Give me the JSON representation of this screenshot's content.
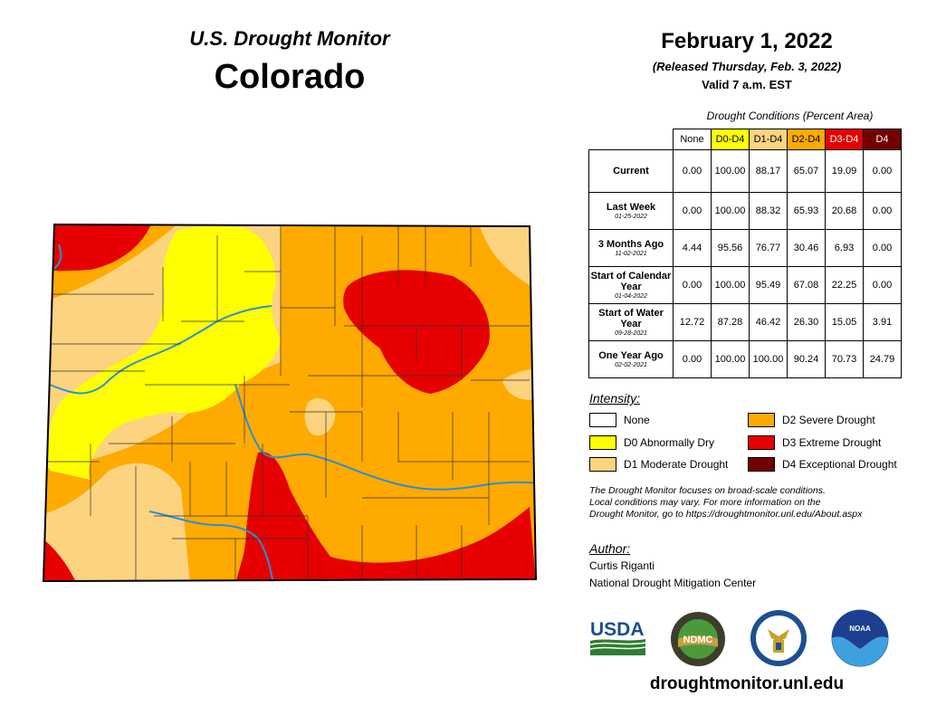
{
  "header": {
    "subtitle": "U.S. Drought Monitor",
    "state": "Colorado",
    "date": "February 1, 2022",
    "released": "(Released Thursday, Feb. 3, 2022)",
    "valid": "Valid 7 a.m. EST"
  },
  "table": {
    "caption": "Drought Conditions (Percent Area)",
    "columns": [
      "None",
      "D0-D4",
      "D1-D4",
      "D2-D4",
      "D3-D4",
      "D4"
    ],
    "column_colors": [
      "#ffffff",
      "#ffff00",
      "#fcd37f",
      "#ffaa00",
      "#e60000",
      "#730000"
    ],
    "rows": [
      {
        "label": "Current",
        "date": "",
        "values": [
          "0.00",
          "100.00",
          "88.17",
          "65.07",
          "19.09",
          "0.00"
        ]
      },
      {
        "label": "Last Week",
        "date": "01-25-2022",
        "values": [
          "0.00",
          "100.00",
          "88.32",
          "65.93",
          "20.68",
          "0.00"
        ]
      },
      {
        "label": "3 Months Ago",
        "date": "11-02-2021",
        "values": [
          "4.44",
          "95.56",
          "76.77",
          "30.46",
          "6.93",
          "0.00"
        ]
      },
      {
        "label": "Start of Calendar Year",
        "date": "01-04-2022",
        "values": [
          "0.00",
          "100.00",
          "95.49",
          "67.08",
          "22.25",
          "0.00"
        ]
      },
      {
        "label": "Start of Water Year",
        "date": "09-28-2021",
        "values": [
          "12.72",
          "87.28",
          "46.42",
          "26.30",
          "15.05",
          "3.91"
        ]
      },
      {
        "label": "One Year Ago",
        "date": "02-02-2021",
        "values": [
          "0.00",
          "100.00",
          "100.00",
          "90.24",
          "70.73",
          "24.79"
        ]
      }
    ]
  },
  "legend": {
    "title": "Intensity:",
    "items": [
      {
        "label": "None",
        "color": "#ffffff"
      },
      {
        "label": "D0 Abnormally Dry",
        "color": "#ffff00"
      },
      {
        "label": "D1 Moderate Drought",
        "color": "#fcd37f"
      },
      {
        "label": "D2 Severe Drought",
        "color": "#ffaa00"
      },
      {
        "label": "D3 Extreme Drought",
        "color": "#e60000"
      },
      {
        "label": "D4 Exceptional Drought",
        "color": "#730000"
      }
    ]
  },
  "disclaimer": {
    "line1": "The Drought Monitor focuses on broad-scale conditions.",
    "line2": "Local conditions may vary. For more information on the",
    "line3": "Drought Monitor, go to https://droughtmonitor.unl.edu/About.aspx"
  },
  "author": {
    "title": "Author:",
    "name": "Curtis Riganti",
    "org": "National Drought Mitigation Center"
  },
  "logos": {
    "usda": "USDA",
    "ndmc": "NDMC",
    "noaa": "NOAA"
  },
  "footer": {
    "url": "droughtmonitor.unl.edu"
  },
  "map_colors": {
    "d0": "#ffff00",
    "d1": "#fcd37f",
    "d2": "#ffaa00",
    "d3": "#e60000",
    "river": "#2b8fd6"
  }
}
